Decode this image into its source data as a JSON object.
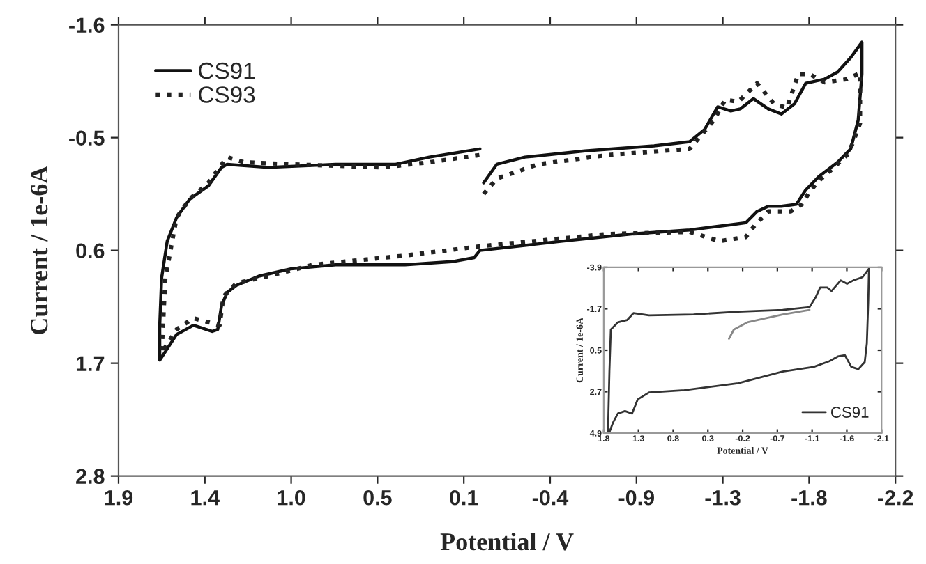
{
  "chart_data": [
    {
      "type": "line",
      "xlabel": "Potential / V",
      "ylabel": "Current / 1e-6A",
      "xlim": [
        1.9,
        -2.249
      ],
      "xticks": [
        1.9,
        {
          "value": 1.439,
          "label": "1.4"
        },
        {
          "value": 0.978,
          "label": "1.0"
        },
        {
          "value": 0.517,
          "label": "0.5"
        },
        {
          "value": 0.056,
          "label": "0.1"
        },
        {
          "value": -0.405,
          "label": "-0.4"
        },
        {
          "value": -0.866,
          "label": "-0.9"
        },
        {
          "value": -1.327,
          "label": "-1.3"
        },
        {
          "value": -1.788,
          "label": "-1.8"
        },
        {
          "value": -2.249,
          "label": "-2.2"
        }
      ],
      "ylim": [
        2.8,
        -1.6
      ],
      "yticks": [
        -1.6,
        -0.5,
        0.6,
        1.7,
        2.8
      ],
      "grid": false,
      "legend": "top left",
      "series": [
        {
          "name": "CS91",
          "color": "#111111",
          "line_style": "solid",
          "x": [
            -0.05,
            -0.12,
            -0.27,
            -0.59,
            -0.96,
            -1.15,
            -1.23,
            -1.3,
            -1.37,
            -1.42,
            -1.49,
            -1.57,
            -1.64,
            -1.71,
            -1.77,
            -1.87,
            -1.94,
            -2.01,
            -2.07,
            -2.07,
            -2.05,
            -2.01,
            -1.94,
            -1.84,
            -1.77,
            -1.72,
            -1.64,
            -1.57,
            -1.51,
            -1.45,
            -1.37,
            -1.28,
            -1.15,
            -0.84,
            -0.47,
            -0.03,
            0.0,
            0.12,
            0.37,
            0.74,
            0.98,
            1.15,
            1.27,
            1.32,
            1.35,
            1.37,
            1.4,
            1.5,
            1.59,
            1.68,
            1.68,
            1.67,
            1.64,
            1.59,
            1.52,
            1.42,
            1.35,
            1.32,
            1.1,
            0.74,
            0.42,
            0.24,
            -0.03
          ],
          "values": [
            -0.06,
            -0.24,
            -0.31,
            -0.37,
            -0.42,
            -0.46,
            -0.58,
            -0.8,
            -0.76,
            -0.78,
            -0.88,
            -0.78,
            -0.73,
            -0.83,
            -1.03,
            -1.07,
            -1.14,
            -1.28,
            -1.43,
            -1.12,
            -0.67,
            -0.39,
            -0.26,
            -0.12,
            0.01,
            0.15,
            0.17,
            0.17,
            0.22,
            0.33,
            0.35,
            0.37,
            0.4,
            0.44,
            0.51,
            0.6,
            0.67,
            0.71,
            0.74,
            0.74,
            0.78,
            0.85,
            0.94,
            1.01,
            1.14,
            1.37,
            1.39,
            1.33,
            1.42,
            1.67,
            1.33,
            0.87,
            0.51,
            0.28,
            0.1,
            -0.03,
            -0.21,
            -0.24,
            -0.21,
            -0.24,
            -0.24,
            -0.31,
            -0.39
          ]
        },
        {
          "name": "CS93",
          "color": "#222222",
          "line_style": "dotted",
          "x": [
            -0.05,
            -0.12,
            -0.34,
            -0.71,
            -1.15,
            -1.28,
            -1.34,
            -1.41,
            -1.51,
            -1.6,
            -1.67,
            -1.73,
            -1.79,
            -1.87,
            -1.99,
            -2.06,
            -2.06,
            -2.02,
            -1.99,
            -1.91,
            -1.84,
            -1.79,
            -1.75,
            -1.69,
            -1.57,
            -1.5,
            -1.45,
            -1.31,
            -1.15,
            -0.71,
            -0.03,
            0.37,
            0.86,
            1.1,
            1.27,
            1.34,
            1.36,
            1.5,
            1.59,
            1.67,
            1.65,
            1.59,
            1.52,
            1.42,
            1.32,
            1.23,
            0.98,
            0.49,
            0.24,
            -0.03
          ],
          "values": [
            0.05,
            -0.1,
            -0.24,
            -0.33,
            -0.39,
            -0.67,
            -0.87,
            -0.85,
            -1.03,
            -0.83,
            -0.79,
            -1.12,
            -1.12,
            -1.04,
            -1.07,
            -1.13,
            -0.64,
            -0.44,
            -0.33,
            -0.19,
            -0.08,
            0.03,
            0.15,
            0.22,
            0.22,
            0.35,
            0.47,
            0.51,
            0.42,
            0.44,
            0.56,
            0.65,
            0.74,
            0.85,
            0.92,
            1.05,
            1.33,
            1.26,
            1.37,
            1.6,
            0.87,
            0.28,
            0.1,
            -0.06,
            -0.31,
            -0.26,
            -0.24,
            -0.21,
            -0.26,
            -0.33
          ]
        }
      ]
    },
    {
      "type": "line",
      "xlabel": "Potential / V",
      "ylabel": "Current / 1e-6A",
      "xlim": [
        1.8,
        -2.128
      ],
      "xticks": [
        1.8,
        {
          "value": 1.309,
          "label": "1.3"
        },
        {
          "value": 0.818,
          "label": "0.8"
        },
        {
          "value": 0.327,
          "label": "0.3"
        },
        {
          "value": -0.164,
          "label": "-0.2"
        },
        {
          "value": -0.655,
          "label": "-0.7"
        },
        {
          "value": -1.146,
          "label": "-1.1"
        },
        {
          "value": -1.637,
          "label": "-1.6"
        },
        {
          "value": -2.128,
          "label": "-2.1"
        }
      ],
      "ylim": [
        4.9,
        -3.9
      ],
      "yticks": [
        -3.9,
        -1.7,
        0.5,
        2.7,
        4.9
      ],
      "grid": false,
      "legend": "bottom right",
      "series": [
        {
          "name": "CS91",
          "color": "#333333",
          "line_style": "solid",
          "x": [
            1.74,
            1.72,
            1.7,
            1.6,
            1.47,
            1.38,
            1.16,
            0.53,
            -0.1,
            -0.73,
            -1.11,
            -1.2,
            -1.26,
            -1.36,
            -1.42,
            -1.55,
            -1.64,
            -1.73,
            -1.86,
            -1.95,
            -1.94,
            -1.92,
            -1.89,
            -1.8,
            -1.7,
            -1.61,
            -1.51,
            -1.39,
            -1.17,
            -0.73,
            -0.1,
            0.66,
            1.16,
            1.32,
            1.4,
            1.5,
            1.6,
            1.67,
            1.72
          ],
          "values": [
            4.85,
            1.63,
            -0.6,
            -0.98,
            -1.1,
            -1.47,
            -1.35,
            -1.4,
            -1.55,
            -1.64,
            -1.79,
            -2.34,
            -2.83,
            -2.83,
            -2.64,
            -3.21,
            -3.03,
            -3.21,
            -3.38,
            -3.83,
            -2.09,
            0.14,
            1.13,
            1.5,
            1.38,
            0.76,
            0.83,
            1.08,
            1.38,
            1.63,
            2.25,
            2.62,
            2.74,
            3.11,
            3.86,
            3.73,
            3.86,
            4.35,
            4.85
          ]
        },
        {
          "color": "#888888",
          "line_style": "solid",
          "x": [
            0.03,
            -0.04,
            -0.23,
            -0.73,
            -1.11
          ],
          "values": [
            -0.11,
            -0.6,
            -0.98,
            -1.4,
            -1.64
          ]
        }
      ]
    }
  ]
}
